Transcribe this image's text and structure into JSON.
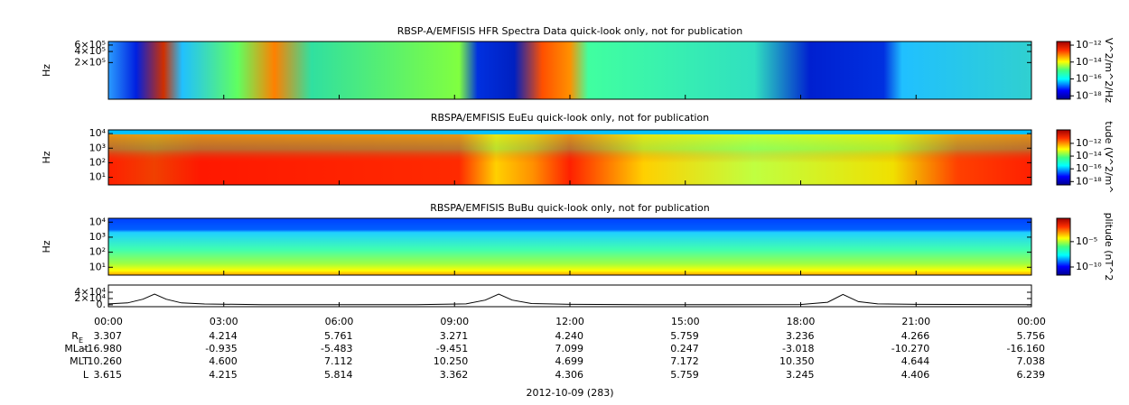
{
  "chart_data": [
    {
      "type": "spectrogram",
      "title": "RBSP-A/EMFISIS  HFR Spectra Data quick-look only, not for publication",
      "ylabel": "Hz",
      "yscale": "log",
      "ylim": [
        20000,
        750000
      ],
      "yticks": [
        {
          "value": 600000,
          "label": "6×10⁵"
        },
        {
          "value": 400000,
          "label": "4×10⁵"
        },
        {
          "value": 200000,
          "label": "2×10⁵"
        }
      ],
      "colorbar": {
        "label": "V^2/m^2/Hz",
        "zscale": "log",
        "zlim": [
          4e-19,
          2.7e-12
        ],
        "zticks": [
          {
            "value": 1e-12,
            "label": "10⁻¹²"
          },
          {
            "value": 1e-14,
            "label": "10⁻¹⁴"
          },
          {
            "value": 1e-16,
            "label": "10⁻¹⁶"
          },
          {
            "value": 1e-18,
            "label": "10⁻¹⁸"
          }
        ]
      }
    },
    {
      "type": "spectrogram",
      "title": "RBSPA/EMFISIS  EuEu quick-look only, not for publication",
      "ylabel": "Hz",
      "yscale": "log",
      "ylim": [
        3,
        18000
      ],
      "yticks": [
        {
          "value": 10000,
          "label": "10⁴"
        },
        {
          "value": 1000,
          "label": "10³"
        },
        {
          "value": 100,
          "label": "10²"
        },
        {
          "value": 10,
          "label": "10¹"
        }
      ],
      "colorbar": {
        "label": "tude (V^2/m^",
        "zscale": "log",
        "zlim": [
          3e-19,
          1.3e-10
        ],
        "zticks": [
          {
            "value": 1e-12,
            "label": "10⁻¹²"
          },
          {
            "value": 1e-14,
            "label": "10⁻¹⁴"
          },
          {
            "value": 1e-16,
            "label": "10⁻¹⁶"
          },
          {
            "value": 1e-18,
            "label": "10⁻¹⁸"
          }
        ]
      }
    },
    {
      "type": "spectrogram",
      "title": "RBSPA/EMFISIS  BuBu quick-look only, not for publication",
      "ylabel": "Hz",
      "yscale": "log",
      "ylim": [
        3,
        18000
      ],
      "yticks": [
        {
          "value": 10000,
          "label": "10⁴"
        },
        {
          "value": 1000,
          "label": "10³"
        },
        {
          "value": 100,
          "label": "10²"
        },
        {
          "value": 10,
          "label": "10¹"
        }
      ],
      "colorbar": {
        "label": "plitude (nT^2",
        "zscale": "log",
        "zlim": [
          2.5e-12,
          0.4
        ],
        "zticks": [
          {
            "value": 1e-05,
            "label": "10⁻⁵"
          },
          {
            "value": 1e-10,
            "label": "10⁻¹⁰"
          }
        ]
      }
    },
    {
      "type": "line",
      "yscale": "linear",
      "ylim": [
        -6000,
        63000
      ],
      "color": "#000000",
      "yticks": [
        {
          "value": 40000,
          "label": "4×10⁴"
        },
        {
          "value": 20000,
          "label": "2×10⁴"
        },
        {
          "value": 0,
          "label": "0."
        }
      ],
      "x": [
        0,
        0.5,
        0.9,
        1.2,
        1.5,
        1.9,
        2.5,
        4,
        6,
        8,
        9.3,
        9.8,
        10.15,
        10.5,
        11,
        12,
        14,
        16,
        18,
        18.7,
        19.1,
        19.5,
        20,
        21,
        24
      ],
      "values": [
        3000,
        6000,
        18000,
        34000,
        18000,
        6000,
        2500,
        500,
        300,
        500,
        3000,
        15000,
        34000,
        15000,
        4000,
        1500,
        400,
        300,
        800,
        8000,
        33000,
        10000,
        3000,
        1500,
        300
      ],
      "xlim": [
        0,
        24
      ],
      "xticks": [
        {
          "value": 0,
          "label": "00:00"
        },
        {
          "value": 3,
          "label": "03:00"
        },
        {
          "value": 6,
          "label": "06:00"
        },
        {
          "value": 9,
          "label": "09:00"
        },
        {
          "value": 12,
          "label": "12:00"
        },
        {
          "value": 15,
          "label": "15:00"
        },
        {
          "value": 18,
          "label": "18:00"
        },
        {
          "value": 21,
          "label": "21:00"
        },
        {
          "value": 24,
          "label": "00:00"
        }
      ]
    }
  ],
  "ephemeris": {
    "rows": [
      {
        "label": "R",
        "sub": "E",
        "values": [
          "3.307",
          "4.214",
          "5.761",
          "3.271",
          "4.240",
          "5.759",
          "3.236",
          "4.266",
          "5.756"
        ]
      },
      {
        "label": "MLat",
        "values": [
          "-16.980",
          "-0.935",
          "-5.483",
          "-9.451",
          "7.099",
          "0.247",
          "-3.018",
          "-10.270",
          "-16.160"
        ]
      },
      {
        "label": "MLT",
        "values": [
          "10.260",
          "4.600",
          "7.112",
          "10.250",
          "4.699",
          "7.172",
          "10.350",
          "4.644",
          "7.038"
        ]
      },
      {
        "label": "L",
        "values": [
          "3.615",
          "4.215",
          "5.814",
          "3.362",
          "4.306",
          "5.759",
          "3.245",
          "4.406",
          "6.239"
        ]
      }
    ],
    "date": "2012-10-09 (283)"
  }
}
